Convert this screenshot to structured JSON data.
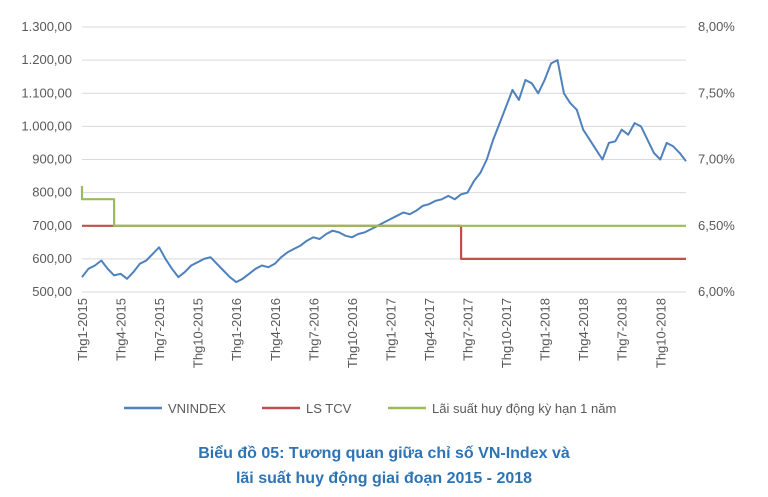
{
  "colors": {
    "vnindex": "#4f81bd",
    "ls_tcv": "#c0504d",
    "lai_suat": "#9bbb59",
    "axis_text": "#595959",
    "grid": "#d9d9d9",
    "caption": "#2e74b5"
  },
  "chart_data": {
    "type": "line",
    "title": "",
    "caption_line1": "Biểu đồ 05: Tương quan giữa chỉ số VN-Index và",
    "caption_line2": "lãi suất huy động giai đoạn 2015 - 2018",
    "x_tick_labels": [
      "Thg1-2015",
      "Thg4-2015",
      "Thg7-2015",
      "Thg10-2015",
      "Thg1-2016",
      "Thg4-2016",
      "Thg7-2016",
      "Thg10-2016",
      "Thg1-2017",
      "Thg4-2017",
      "Thg7-2017",
      "Thg10-2017",
      "Thg1-2018",
      "Thg4-2018",
      "Thg7-2018",
      "Thg10-2018"
    ],
    "x_range_months": [
      0,
      47
    ],
    "y_left": {
      "ticks": [
        "500,00",
        "600,00",
        "700,00",
        "800,00",
        "900,00",
        "1.000,00",
        "1.100,00",
        "1.200,00",
        "1.300,00"
      ],
      "lim": [
        500,
        1300
      ]
    },
    "y_right": {
      "ticks": [
        "6,00%",
        "6,50%",
        "7,00%",
        "7,50%",
        "8,00%"
      ],
      "lim": [
        6.0,
        8.0
      ]
    },
    "grid": "horizontal",
    "legend_position": "bottom",
    "series": [
      {
        "name": "VNINDEX",
        "axis": "left",
        "x": [
          0,
          0.5,
          1,
          1.5,
          2,
          2.5,
          3,
          3.5,
          4,
          4.5,
          5,
          5.5,
          6,
          6.5,
          7,
          7.5,
          8,
          8.5,
          9,
          9.5,
          10,
          10.5,
          11,
          11.5,
          12,
          12.5,
          13,
          13.5,
          14,
          14.5,
          15,
          15.5,
          16,
          16.5,
          17,
          17.5,
          18,
          18.5,
          19,
          19.5,
          20,
          20.5,
          21,
          21.5,
          22,
          22.5,
          23,
          23.5,
          24,
          24.5,
          25,
          25.5,
          26,
          26.5,
          27,
          27.5,
          28,
          28.5,
          29,
          29.5,
          30,
          30.5,
          31,
          31.5,
          32,
          32.5,
          33,
          33.5,
          34,
          34.5,
          35,
          35.5,
          36,
          36.5,
          37,
          37.5,
          38,
          38.5,
          39,
          39.5,
          40,
          40.5,
          41,
          41.5,
          42,
          42.5,
          43,
          43.5,
          44,
          44.5,
          45,
          45.5,
          46,
          46.5,
          47
        ],
        "values": [
          545,
          570,
          580,
          595,
          570,
          550,
          555,
          540,
          560,
          585,
          595,
          615,
          635,
          600,
          570,
          545,
          560,
          580,
          590,
          600,
          605,
          585,
          565,
          545,
          530,
          540,
          555,
          570,
          580,
          575,
          585,
          605,
          620,
          630,
          640,
          655,
          665,
          660,
          675,
          685,
          680,
          670,
          665,
          675,
          680,
          690,
          700,
          710,
          720,
          730,
          740,
          735,
          745,
          760,
          765,
          775,
          780,
          790,
          780,
          795,
          800,
          835,
          860,
          900,
          960,
          1010,
          1060,
          1110,
          1080,
          1140,
          1130,
          1100,
          1140,
          1190,
          1200,
          1100,
          1070,
          1050,
          990,
          960,
          930,
          900,
          950,
          955,
          990,
          975,
          1010,
          1000,
          960,
          920,
          900,
          950,
          940,
          920,
          895
        ]
      },
      {
        "name": "LS TCV",
        "axis": "right",
        "x": [
          0,
          29.5,
          29.5,
          47
        ],
        "values": [
          6.5,
          6.5,
          6.25,
          6.25
        ]
      },
      {
        "name": "Lãi suất huy động kỳ hạn 1 năm",
        "axis": "right",
        "x": [
          0,
          0,
          2.5,
          2.5,
          47
        ],
        "values": [
          6.8,
          6.7,
          6.7,
          6.5,
          6.5
        ]
      }
    ]
  }
}
